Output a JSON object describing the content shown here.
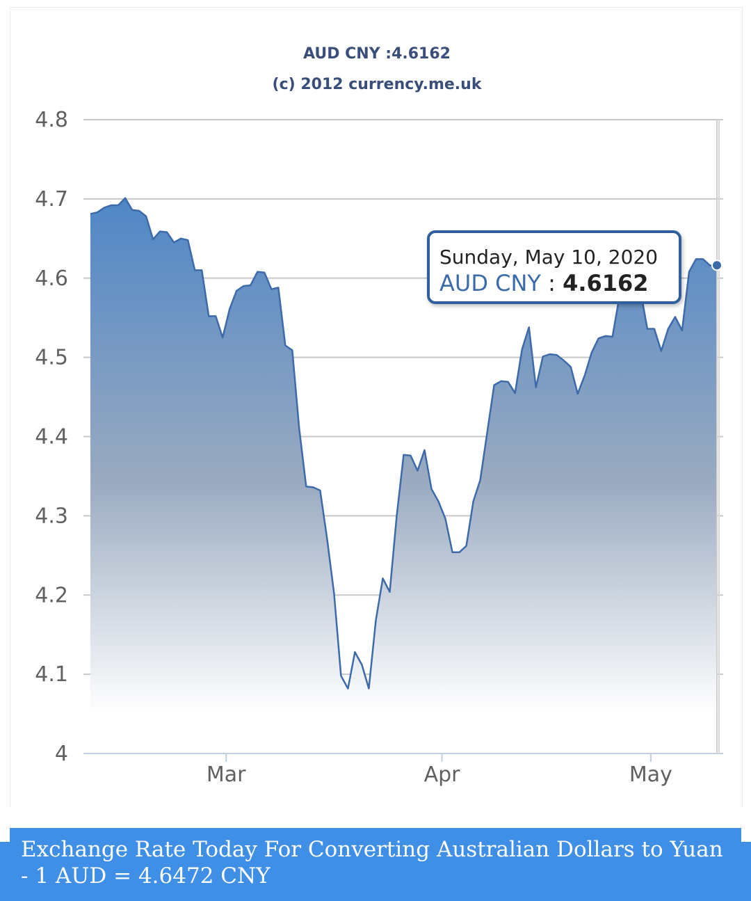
{
  "chart_data": {
    "type": "area",
    "title": "AUD CNY :4.6162",
    "subtitle": "(c) 2012 currency.me.uk",
    "series": [
      {
        "name": "AUD CNY",
        "x": [
          "2020-02-10",
          "2020-02-11",
          "2020-02-12",
          "2020-02-13",
          "2020-02-14",
          "2020-02-15",
          "2020-02-16",
          "2020-02-17",
          "2020-02-18",
          "2020-02-19",
          "2020-02-20",
          "2020-02-21",
          "2020-02-22",
          "2020-02-23",
          "2020-02-24",
          "2020-02-25",
          "2020-02-26",
          "2020-02-27",
          "2020-02-28",
          "2020-02-29",
          "2020-03-01",
          "2020-03-02",
          "2020-03-03",
          "2020-03-04",
          "2020-03-05",
          "2020-03-06",
          "2020-03-07",
          "2020-03-08",
          "2020-03-09",
          "2020-03-10",
          "2020-03-11",
          "2020-03-12",
          "2020-03-13",
          "2020-03-14",
          "2020-03-15",
          "2020-03-16",
          "2020-03-17",
          "2020-03-18",
          "2020-03-19",
          "2020-03-20",
          "2020-03-21",
          "2020-03-22",
          "2020-03-23",
          "2020-03-24",
          "2020-03-25",
          "2020-03-26",
          "2020-03-27",
          "2020-03-28",
          "2020-03-29",
          "2020-03-30",
          "2020-03-31",
          "2020-04-01",
          "2020-04-02",
          "2020-04-03",
          "2020-04-04",
          "2020-04-05",
          "2020-04-06",
          "2020-04-07",
          "2020-04-08",
          "2020-04-09",
          "2020-04-10",
          "2020-04-11",
          "2020-04-12",
          "2020-04-13",
          "2020-04-14",
          "2020-04-15",
          "2020-04-16",
          "2020-04-17",
          "2020-04-18",
          "2020-04-19",
          "2020-04-20",
          "2020-04-21",
          "2020-04-22",
          "2020-04-23",
          "2020-04-24",
          "2020-04-25",
          "2020-04-26",
          "2020-04-27",
          "2020-04-28",
          "2020-04-29",
          "2020-04-30",
          "2020-05-01",
          "2020-05-02",
          "2020-05-03",
          "2020-05-04",
          "2020-05-05",
          "2020-05-06",
          "2020-05-07",
          "2020-05-08",
          "2020-05-09",
          "2020-05-10"
        ],
        "values": [
          4.681,
          4.683,
          4.689,
          4.692,
          4.692,
          4.701,
          4.686,
          4.685,
          4.678,
          4.649,
          4.659,
          4.658,
          4.645,
          4.65,
          4.648,
          4.61,
          4.61,
          4.552,
          4.552,
          4.525,
          4.561,
          4.584,
          4.59,
          4.591,
          4.608,
          4.607,
          4.586,
          4.588,
          4.515,
          4.509,
          4.41,
          4.337,
          4.336,
          4.332,
          4.271,
          4.202,
          4.098,
          4.082,
          4.128,
          4.112,
          4.082,
          4.168,
          4.221,
          4.204,
          4.3,
          4.377,
          4.376,
          4.357,
          4.383,
          4.334,
          4.318,
          4.296,
          4.254,
          4.254,
          4.262,
          4.318,
          4.345,
          4.405,
          4.465,
          4.47,
          4.469,
          4.455,
          4.51,
          4.538,
          4.462,
          4.501,
          4.504,
          4.503,
          4.496,
          4.488,
          4.454,
          4.477,
          4.506,
          4.524,
          4.527,
          4.526,
          4.577,
          4.598,
          4.63,
          4.585,
          4.536,
          4.536,
          4.508,
          4.536,
          4.551,
          4.534,
          4.608,
          4.624,
          4.624,
          4.616,
          4.6162
        ]
      }
    ],
    "xlim": [
      "2020-02-10",
      "2020-05-10"
    ],
    "ylim": [
      4.0,
      4.8
    ],
    "yticks": [
      "4",
      "4.1",
      "4.2",
      "4.3",
      "4.4",
      "4.5",
      "4.6",
      "4.7",
      "4.8"
    ],
    "ytick_values": [
      4.0,
      4.1,
      4.2,
      4.3,
      4.4,
      4.5,
      4.6,
      4.7,
      4.8
    ],
    "xticks": [
      {
        "label": "Mar",
        "date": "2020-03-01"
      },
      {
        "label": "Apr",
        "date": "2020-04-01"
      },
      {
        "label": "May",
        "date": "2020-05-01"
      }
    ],
    "grid": true,
    "legend": "none",
    "colors": {
      "line": "#3d6aa8",
      "fill_top": "#4f86c6",
      "fill_bottom": "#ffffff",
      "grid": "#c8c8c8",
      "title": "#3a4e7a"
    }
  },
  "tooltip": {
    "date": "Sunday, May 10, 2020",
    "series": "AUD CNY",
    "separator": ":",
    "value": "4.6162"
  },
  "banner": {
    "text": "Exchange Rate Today For Converting Australian Dollars to Yuan - 1 AUD = 4.6472 CNY",
    "color": "#3f8fe6"
  }
}
